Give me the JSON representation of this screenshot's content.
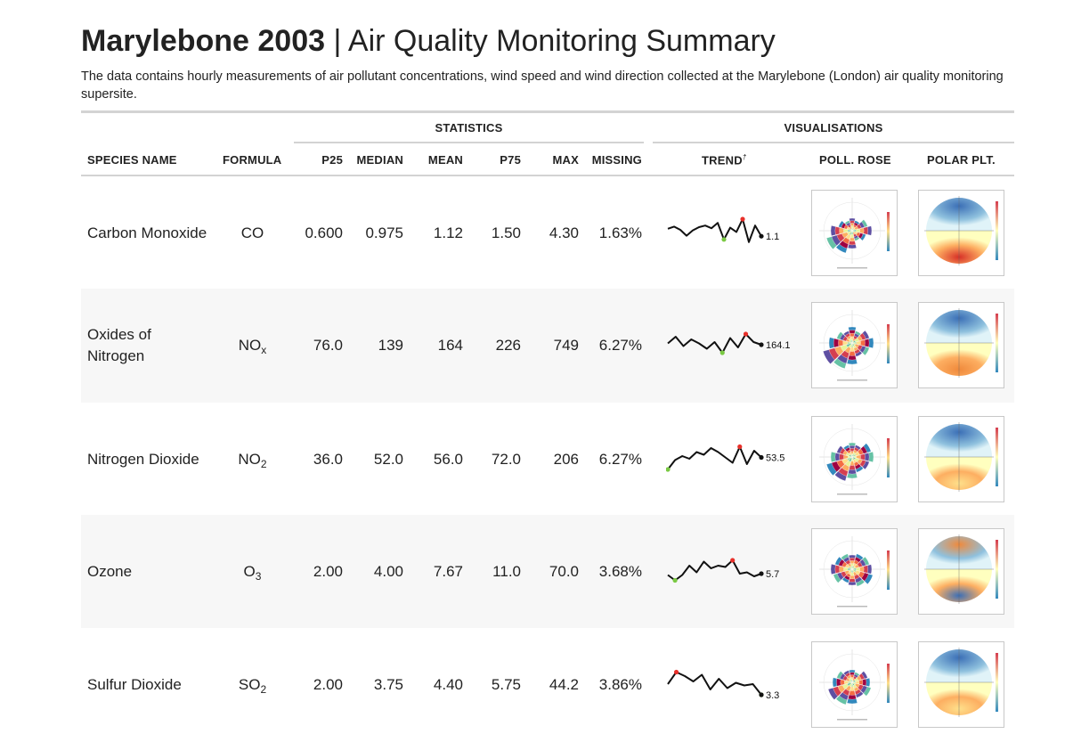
{
  "header": {
    "title_bold": "Marylebone 2003",
    "title_sep": " | ",
    "title_rest": "Air Quality Monitoring Summary",
    "subtitle": "The data contains hourly measurements of air pollutant concentrations, wind speed and wind direction collected at the Marylebone (London) air quality monitoring supersite."
  },
  "table": {
    "groups": {
      "statistics": "STATISTICS",
      "visualisations": "VISUALISATIONS"
    },
    "columns": {
      "species": "SPECIES NAME",
      "formula": "FORMULA",
      "p25": "P25",
      "median": "MEDIAN",
      "mean": "MEAN",
      "p75": "P75",
      "max": "MAX",
      "missing": "MISSING",
      "trend": "TREND",
      "trend_mark": "†",
      "poll_rose": "POLL. ROSE",
      "polar_plot": "POLAR PLT."
    },
    "rows": [
      {
        "name": "Carbon Monoxide",
        "formula_base": "CO",
        "formula_sub": "",
        "p25": "0.600",
        "median": "0.975",
        "mean": "1.12",
        "p75": "1.50",
        "max": "4.30",
        "missing": "1.63%",
        "trend_label": "1.1",
        "trend": [
          0.64,
          0.72,
          0.6,
          0.38,
          0.58,
          0.7,
          0.76,
          0.66,
          0.86,
          0.24,
          0.68,
          0.52,
          1.0,
          0.14,
          0.76,
          0.36
        ],
        "trend_min_index": 9,
        "trend_max_index": 12,
        "polar_top": "blue",
        "polar_bottom": "red"
      },
      {
        "name": "Oxides of Nitrogen",
        "formula_base": "NO",
        "formula_sub": "x",
        "p25": "76.0",
        "median": "139",
        "mean": "164",
        "p75": "226",
        "max": "749",
        "missing": "6.27%",
        "trend_label": "164.1",
        "trend": [
          0.55,
          0.8,
          0.45,
          0.7,
          0.55,
          0.35,
          0.6,
          0.2,
          0.75,
          0.4,
          0.9,
          0.6,
          0.5
        ],
        "trend_min_index": 7,
        "trend_max_index": 10,
        "polar_top": "blue",
        "polar_bottom": "orange"
      },
      {
        "name": "Nitrogen Dioxide",
        "formula_base": "NO",
        "formula_sub": "2",
        "p25": "36.0",
        "median": "52.0",
        "mean": "56.0",
        "p75": "72.0",
        "max": "206",
        "missing": "6.27%",
        "trend_label": "53.5",
        "trend": [
          0.1,
          0.45,
          0.6,
          0.5,
          0.75,
          0.65,
          0.9,
          0.75,
          0.55,
          0.35,
          0.95,
          0.3,
          0.8,
          0.55
        ],
        "trend_min_index": 0,
        "trend_max_index": 10,
        "polar_top": "blue",
        "polar_bottom": "yellow"
      },
      {
        "name": "Ozone",
        "formula_base": "O",
        "formula_sub": "3",
        "p25": "2.00",
        "median": "4.00",
        "mean": "7.67",
        "p75": "11.0",
        "max": "70.0",
        "missing": "3.68%",
        "trend_label": "5.7",
        "trend": [
          0.35,
          0.15,
          0.35,
          0.7,
          0.45,
          0.85,
          0.6,
          0.7,
          0.65,
          0.9,
          0.4,
          0.45,
          0.3,
          0.4
        ],
        "trend_min_index": 1,
        "trend_max_index": 9,
        "polar_top": "orange",
        "polar_bottom": "blue"
      },
      {
        "name": "Sulfur Dioxide",
        "formula_base": "SO",
        "formula_sub": "2",
        "p25": "2.00",
        "median": "3.75",
        "mean": "4.40",
        "p75": "5.75",
        "max": "44.2",
        "missing": "3.86%",
        "trend_label": "3.3",
        "trend": [
          0.5,
          0.95,
          0.8,
          0.6,
          0.85,
          0.3,
          0.7,
          0.35,
          0.55,
          0.45,
          0.5,
          0.1
        ],
        "trend_min_index": 11,
        "trend_max_index": 1,
        "polar_top": "blue",
        "polar_bottom": "yellow"
      }
    ]
  },
  "colors": {
    "trend_line": "#111111",
    "trend_min": "#7ac943",
    "trend_max": "#e8302a",
    "rule": "#d3d3d3",
    "alt_row": "#f7f7f7"
  }
}
